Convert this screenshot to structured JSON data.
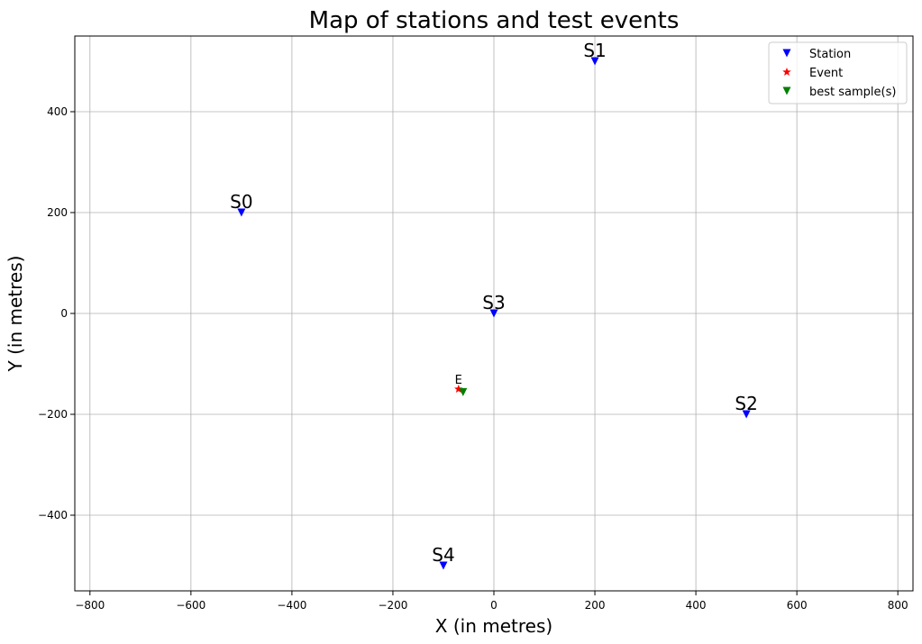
{
  "chart_data": {
    "type": "scatter",
    "title": "Map of stations and test events",
    "xlabel": "X (in metres)",
    "ylabel": "Y (in metres)",
    "xlim": [
      -830,
      830
    ],
    "ylim": [
      -550,
      550
    ],
    "xticks": [
      -800,
      -600,
      -400,
      -200,
      0,
      200,
      400,
      600,
      800
    ],
    "yticks": [
      -400,
      -200,
      0,
      200,
      400
    ],
    "xtick_labels": [
      "−800",
      "−600",
      "−400",
      "−200",
      "0",
      "200",
      "400",
      "600",
      "800"
    ],
    "ytick_labels": [
      "−400",
      "−200",
      "0",
      "200",
      "400"
    ],
    "grid": true,
    "legend_position": "top-right",
    "series": [
      {
        "name": "Station",
        "marker": "triangle-down",
        "color": "#0000ff",
        "points": [
          {
            "label": "S0",
            "x": -500,
            "y": 200
          },
          {
            "label": "S1",
            "x": 200,
            "y": 500
          },
          {
            "label": "S2",
            "x": 500,
            "y": -200
          },
          {
            "label": "S3",
            "x": 0,
            "y": 0
          },
          {
            "label": "S4",
            "x": -100,
            "y": -500
          }
        ]
      },
      {
        "name": "Event",
        "marker": "star",
        "color": "#ff0000",
        "points": [
          {
            "label": "E",
            "x": -70,
            "y": -150
          }
        ]
      },
      {
        "name": "best sample(s)",
        "marker": "triangle-down",
        "color": "#008000",
        "points": [
          {
            "label": "",
            "x": -61,
            "y": -156
          }
        ]
      }
    ]
  }
}
